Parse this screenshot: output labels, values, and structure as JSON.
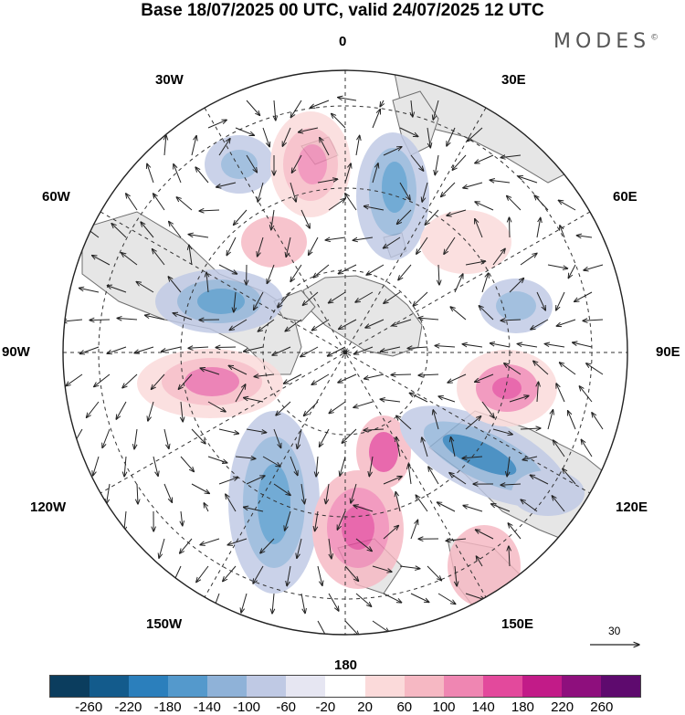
{
  "title": "Base 18/07/2025 00 UTC, valid 24/07/2025 12 UTC",
  "brand": "MODES",
  "brand_mark": "©",
  "longitude_labels": {
    "top": "0",
    "bottom": "180",
    "left": "90W",
    "right": "90E",
    "w30": "30W",
    "e30": "30E",
    "w60": "60W",
    "e60": "60E",
    "w120": "120W",
    "e120": "120E",
    "w150": "150W",
    "e150": "150E"
  },
  "reference_vector_label": "30",
  "colorbar": {
    "colors": [
      "#0b3d5e",
      "#135b8c",
      "#2b7fbc",
      "#5499cc",
      "#8fb2d8",
      "#bfc9e4",
      "#e6e6f2",
      "#ffffff",
      "#fbdada",
      "#f6b8c3",
      "#ef86b2",
      "#e3499c",
      "#c21b88",
      "#8e0f7d",
      "#5e0a6e"
    ],
    "ticks": [
      "-260",
      "-220",
      "-180",
      "-140",
      "-100",
      "-60",
      "-20",
      "20",
      "60",
      "100",
      "140",
      "180",
      "220",
      "260"
    ]
  },
  "map_colors": {
    "land_fill": "#e6e6e6",
    "coast": "#6e6e6e",
    "grid": "#333333",
    "arrow": "#222222"
  }
}
